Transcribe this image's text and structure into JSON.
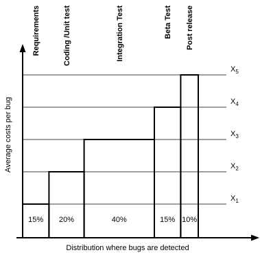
{
  "chart_data": {
    "type": "bar",
    "xlabel": "Distribution where bugs are detected",
    "ylabel": "Average costs per bug",
    "y_levels": [
      "X1",
      "X2",
      "X3",
      "X4",
      "X5"
    ],
    "ylim": [
      0,
      5.5
    ],
    "grid": true,
    "stages": [
      {
        "name": "Requirements",
        "share_percent": 15,
        "cost_level": 1,
        "label": "15%"
      },
      {
        "name": "Coding /Unit test",
        "share_percent": 20,
        "cost_level": 2,
        "label": "20%"
      },
      {
        "name": "Integration Test",
        "share_percent": 40,
        "cost_level": 3,
        "label": "40%"
      },
      {
        "name": "Beta Test",
        "share_percent": 15,
        "cost_level": 4,
        "label": "15%"
      },
      {
        "name": "Post release",
        "share_percent": 10,
        "cost_level": 5,
        "label": "10%"
      }
    ]
  }
}
